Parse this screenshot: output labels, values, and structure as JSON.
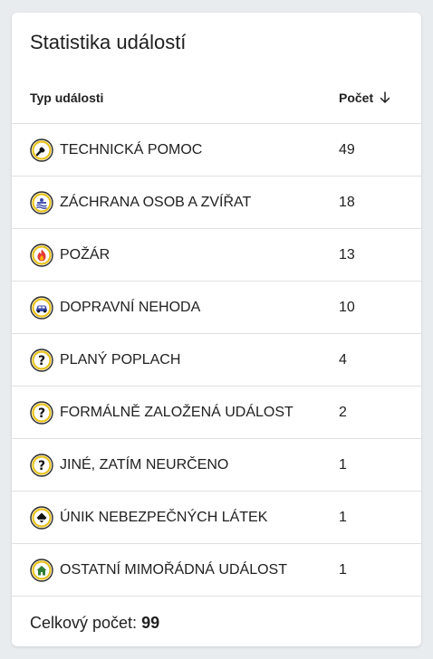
{
  "card": {
    "title": "Statistika událostí"
  },
  "table": {
    "col_type": "Typ události",
    "col_count": "Počet",
    "rows": [
      {
        "icon": "wrench-icon",
        "label": "TECHNICKÁ POMOC",
        "count": "49"
      },
      {
        "icon": "rescue-icon",
        "label": "ZÁCHRANA OSOB A ZVÍŘAT",
        "count": "18"
      },
      {
        "icon": "fire-icon",
        "label": "POŽÁR",
        "count": "13"
      },
      {
        "icon": "car-icon",
        "label": "DOPRAVNÍ NEHODA",
        "count": "10"
      },
      {
        "icon": "question-icon",
        "label": "PLANÝ POPLACH",
        "count": "4"
      },
      {
        "icon": "question-icon",
        "label": "FORMÁLNĚ ZALOŽENÁ UDÁLOST",
        "count": "2"
      },
      {
        "icon": "question-icon",
        "label": "JINÉ, ZATÍM NEURČENO",
        "count": "1"
      },
      {
        "icon": "hazmat-icon",
        "label": "ÚNIK NEBEZPEČNÝCH LÁTEK",
        "count": "1"
      },
      {
        "icon": "house-icon",
        "label": "OSTATNÍ MIMOŘÁDNÁ UDÁLOST",
        "count": "1"
      }
    ]
  },
  "footer": {
    "label": "Celkový počet:",
    "total": "99"
  },
  "colors": {
    "icon_ring": "#e8c21b",
    "icon_border": "#2b2b2b",
    "fire": "#e53935",
    "water": "#3949ab"
  }
}
